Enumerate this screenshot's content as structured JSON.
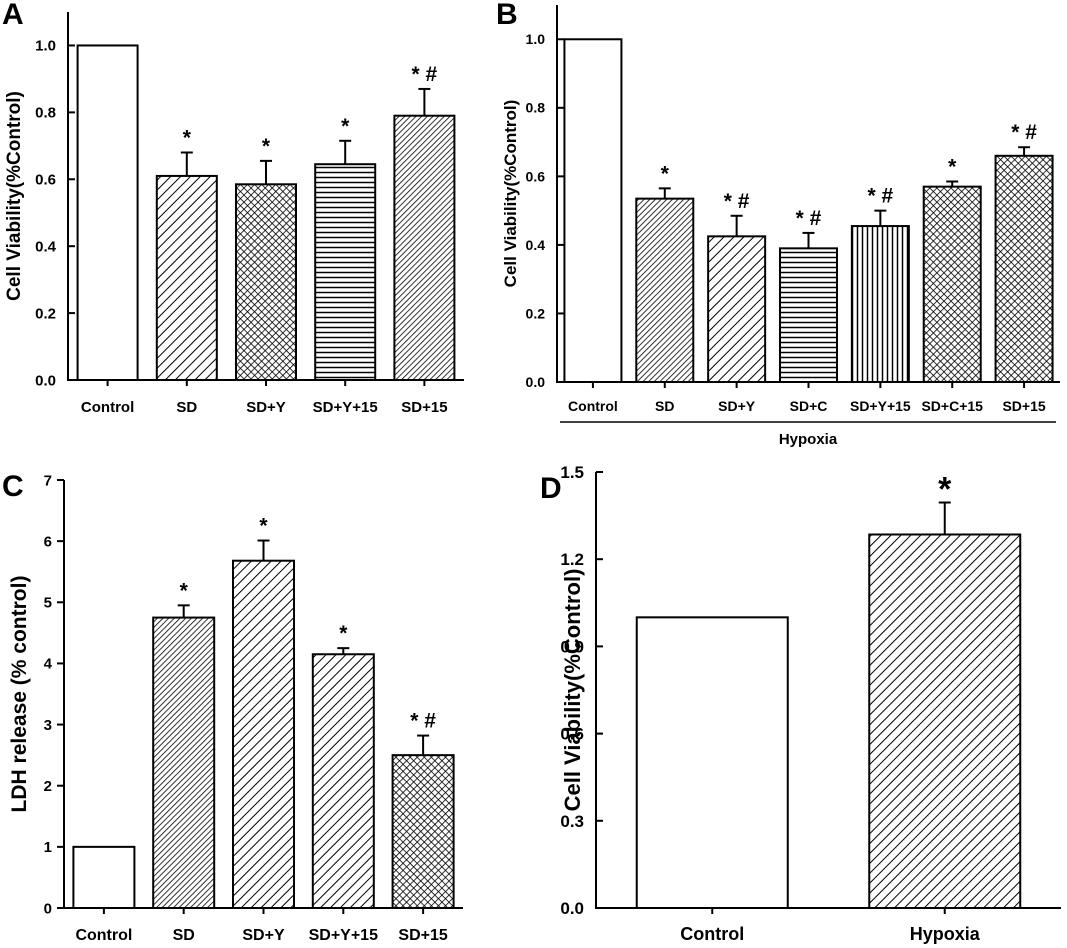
{
  "chart_data": [
    {
      "panel": "A",
      "type": "bar",
      "ylabel": "Cell Viability(%Control)",
      "ylim": [
        0,
        1.1
      ],
      "yticks": [
        "0.0",
        "0.2",
        "0.4",
        "0.6",
        "0.8",
        "1.0"
      ],
      "categories": [
        "Control",
        "SD",
        "SD+Y",
        "SD+Y+15",
        "SD+15"
      ],
      "values": [
        1.0,
        0.61,
        0.585,
        0.645,
        0.79
      ],
      "errors": [
        0,
        0.07,
        0.07,
        0.07,
        0.08
      ],
      "annotations": [
        "",
        "*",
        "*",
        "*",
        "* #"
      ],
      "patterns": [
        "none",
        "diag-right",
        "crosshatch",
        "horizontal",
        "diag-dense"
      ]
    },
    {
      "panel": "B",
      "type": "bar",
      "ylabel": "Cell Viability(%Control)",
      "ylim": [
        0,
        1.1
      ],
      "yticks": [
        "0.0",
        "0.2",
        "0.4",
        "0.6",
        "0.8",
        "1.0"
      ],
      "categories": [
        "Control",
        "SD",
        "SD+Y",
        "SD+C",
        "SD+Y+15",
        "SD+C+15",
        "SD+15"
      ],
      "values": [
        1.0,
        0.535,
        0.425,
        0.39,
        0.455,
        0.57,
        0.66
      ],
      "errors": [
        0,
        0.03,
        0.06,
        0.045,
        0.045,
        0.015,
        0.025
      ],
      "annotations": [
        "",
        "*",
        "* #",
        "* #",
        "* #",
        "*",
        "* #"
      ],
      "group_label": "Hypoxia",
      "patterns": [
        "none",
        "diag-dense",
        "diag-right",
        "horizontal",
        "vertical",
        "crosshatch",
        "crosshatch"
      ]
    },
    {
      "panel": "C",
      "type": "bar",
      "ylabel": "LDH release (% control)",
      "ylim": [
        0,
        7
      ],
      "yticks": [
        "0",
        "1",
        "2",
        "3",
        "4",
        "5",
        "6",
        "7"
      ],
      "categories": [
        "Control",
        "SD",
        "SD+Y",
        "SD+Y+15",
        "SD+15"
      ],
      "values": [
        1.0,
        4.75,
        5.68,
        4.15,
        2.5
      ],
      "errors": [
        0,
        0.2,
        0.33,
        0.1,
        0.32
      ],
      "annotations": [
        "",
        "*",
        "*",
        "*",
        "* #"
      ],
      "patterns": [
        "none",
        "diag-dense",
        "diag-right",
        "diag-right",
        "crosshatch"
      ]
    },
    {
      "panel": "D",
      "type": "bar",
      "ylabel": "Cell Viability(%Control)",
      "ylim": [
        0,
        1.5
      ],
      "yticks": [
        "0.0",
        "0.3",
        "0.6",
        "0.9",
        "1.2",
        "1.5"
      ],
      "categories": [
        "Control",
        "Hypoxia"
      ],
      "values": [
        1.0,
        1.285
      ],
      "errors": [
        0,
        0.11
      ],
      "annotations": [
        "",
        "*"
      ],
      "patterns": [
        "none",
        "diag-right"
      ]
    }
  ]
}
